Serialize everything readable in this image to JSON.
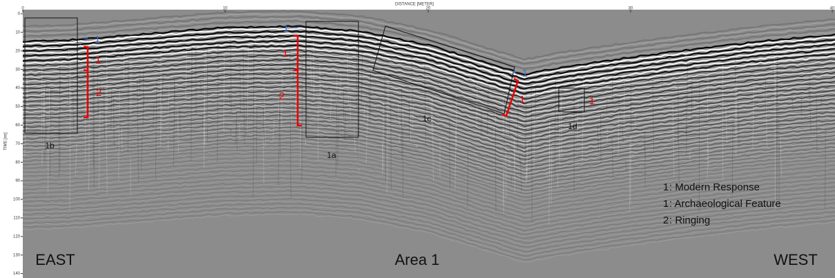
{
  "axes": {
    "x_title": "DISTANCE [METER]",
    "x_ticks": [
      "0",
      "10",
      "20",
      "30",
      "40"
    ],
    "y_title": "TIME [ns]",
    "y_ticks": [
      "0",
      "10",
      "20",
      "30",
      "40",
      "50",
      "60",
      "70",
      "80",
      "90",
      "100",
      "110",
      "120",
      "130",
      "140"
    ]
  },
  "boxes": [
    {
      "label": "1b"
    },
    {
      "label": "1a"
    },
    {
      "label": "1c"
    },
    {
      "label": "1d"
    }
  ],
  "annotations": [
    {
      "text": "1"
    },
    {
      "text": "1"
    },
    {
      "text": "2"
    },
    {
      "text": "1"
    },
    {
      "text": "1"
    },
    {
      "text": "2"
    },
    {
      "text": "1"
    },
    {
      "text": "1"
    },
    {
      "text": "1"
    }
  ],
  "legend": [
    {
      "marker": "1",
      "text": ": Modern Response"
    },
    {
      "marker": "1",
      "text": ": Archaeological Feature"
    },
    {
      "marker": "2",
      "text": ": Ringing"
    }
  ],
  "labels": [
    "EAST",
    "Area 1",
    "WEST"
  ]
}
